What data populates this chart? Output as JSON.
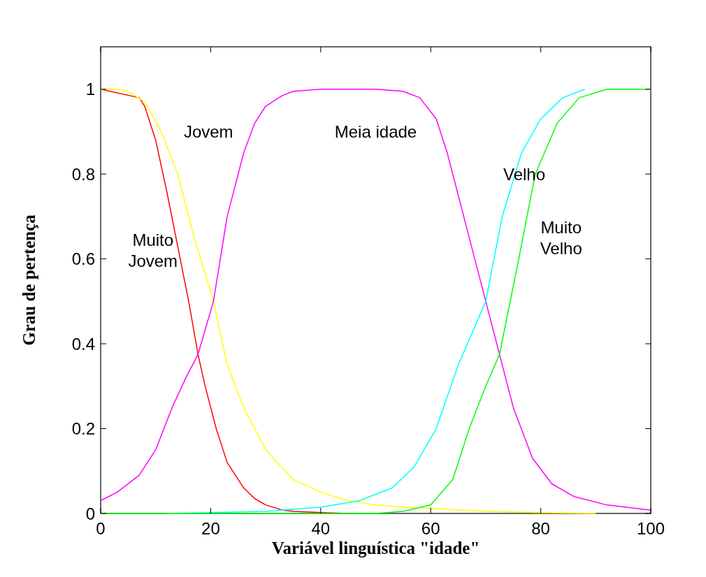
{
  "chart_data": {
    "type": "line",
    "xlabel": "Variável linguística \"idade\"",
    "ylabel": "Grau de pertença",
    "xlim": [
      0,
      100
    ],
    "ylim": [
      0,
      1.1
    ],
    "xticks": [
      0,
      20,
      40,
      60,
      80,
      100
    ],
    "yticks": [
      0,
      0.2,
      0.4,
      0.6,
      0.8,
      1
    ],
    "marker": "none",
    "line_style": "solid",
    "series": [
      {
        "name": "Muito\nJovem",
        "color": "#ff0000",
        "x": [
          0,
          7,
          8,
          10,
          12,
          14,
          16,
          17.7,
          19,
          21,
          23,
          26,
          28,
          30,
          33,
          35,
          40,
          45
        ],
        "values": [
          1,
          0.98,
          0.96,
          0.88,
          0.76,
          0.63,
          0.5,
          0.375,
          0.3,
          0.2,
          0.12,
          0.06,
          0.035,
          0.02,
          0.008,
          0.005,
          0.002,
          0
        ]
      },
      {
        "name": "Jovem",
        "color": "#ffff00",
        "x": [
          0,
          3,
          5,
          8,
          11,
          14,
          17,
          20.5,
          23,
          26,
          30,
          35,
          40,
          45,
          50,
          55,
          60,
          70,
          80,
          90
        ],
        "values": [
          1,
          1,
          0.995,
          0.97,
          0.9,
          0.8,
          0.65,
          0.5,
          0.35,
          0.25,
          0.15,
          0.08,
          0.05,
          0.03,
          0.02,
          0.015,
          0.012,
          0.005,
          0.002,
          0
        ]
      },
      {
        "name": "Meia idade",
        "color": "#ff00ff",
        "x": [
          0,
          3,
          7,
          10,
          13,
          15.5,
          17.7,
          20.5,
          23,
          26,
          28,
          30,
          33,
          35,
          40,
          50,
          55,
          58,
          61,
          63,
          66,
          70,
          72.5,
          75,
          78.5,
          82,
          86,
          92,
          100
        ],
        "values": [
          0.03,
          0.05,
          0.09,
          0.15,
          0.25,
          0.32,
          0.375,
          0.5,
          0.7,
          0.85,
          0.92,
          0.96,
          0.985,
          0.995,
          1,
          1,
          0.995,
          0.98,
          0.93,
          0.85,
          0.7,
          0.5,
          0.375,
          0.25,
          0.13,
          0.07,
          0.04,
          0.02,
          0.008
        ]
      },
      {
        "name": "Velho",
        "color": "#00ffff",
        "x": [
          12,
          20,
          30,
          40,
          47,
          53,
          57,
          61,
          65,
          70,
          73,
          76.5,
          80,
          84,
          88
        ],
        "values": [
          0,
          0.002,
          0.005,
          0.015,
          0.03,
          0.06,
          0.11,
          0.2,
          0.35,
          0.5,
          0.7,
          0.85,
          0.93,
          0.98,
          1
        ]
      },
      {
        "name": "Muito\nVelho",
        "color": "#00ff00",
        "x": [
          0,
          50,
          55,
          60,
          64,
          67,
          70,
          72.5,
          76,
          79,
          83,
          87,
          92,
          100
        ],
        "values": [
          0,
          0,
          0.005,
          0.02,
          0.08,
          0.2,
          0.3,
          0.375,
          0.6,
          0.8,
          0.92,
          0.98,
          1,
          1
        ]
      }
    ]
  }
}
